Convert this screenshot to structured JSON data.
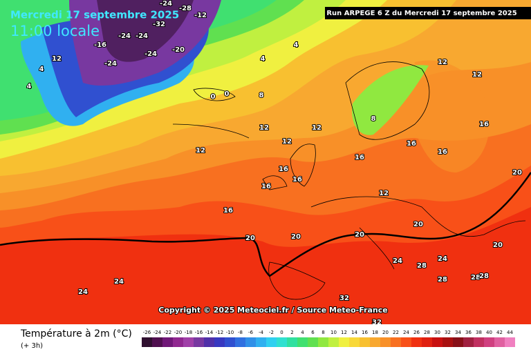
{
  "header": {
    "date": "Mercredi 17 septembre 2025",
    "time": "11:00 locale",
    "run": "Run ARPEGE 6 Z du Mercredi 17 septembre 2025"
  },
  "copyright": "Copyright © 2025 Meteociel.fr / Source Meteo-France",
  "legend": {
    "title": "Température à 2m (°C)",
    "step": "(+ 3h)",
    "ticks": [
      -26,
      -24,
      -22,
      -20,
      -18,
      -16,
      -14,
      -12,
      -10,
      -8,
      -6,
      -4,
      -2,
      0,
      2,
      4,
      6,
      8,
      10,
      12,
      14,
      16,
      18,
      20,
      22,
      24,
      26,
      28,
      30,
      32,
      34,
      36,
      38,
      40,
      42,
      44
    ],
    "colors": [
      "#301030",
      "#501050",
      "#701878",
      "#902890",
      "#a040a8",
      "#7838a0",
      "#5030a8",
      "#3838c0",
      "#3050d0",
      "#3070e0",
      "#3090e8",
      "#30b0f0",
      "#30d0f0",
      "#30e0d0",
      "#30e0a0",
      "#40e070",
      "#60e050",
      "#90e840",
      "#c0f040",
      "#f0f040",
      "#f8d838",
      "#f8c030",
      "#f8a830",
      "#f89028",
      "#f87020",
      "#f85018",
      "#f03010",
      "#e02010",
      "#c81010",
      "#a81010",
      "#881018",
      "#a02040",
      "#c03060",
      "#d04080",
      "#e060a0",
      "#f080c0"
    ]
  },
  "map_labels": [
    "-24",
    "-28",
    "-12",
    "-24",
    "-24",
    "-16",
    "-24",
    "-20",
    "-24",
    "-32",
    "4",
    "4",
    "12",
    "4",
    "4",
    "0",
    "0",
    "8",
    "8",
    "12",
    "12",
    "12",
    "12",
    "16",
    "16",
    "16",
    "16",
    "16",
    "12",
    "12",
    "16",
    "16",
    "20",
    "20",
    "20",
    "20",
    "24",
    "24",
    "24",
    "24",
    "28",
    "28",
    "28",
    "32",
    "28",
    "32",
    "12",
    "16",
    "20",
    "20"
  ]
}
